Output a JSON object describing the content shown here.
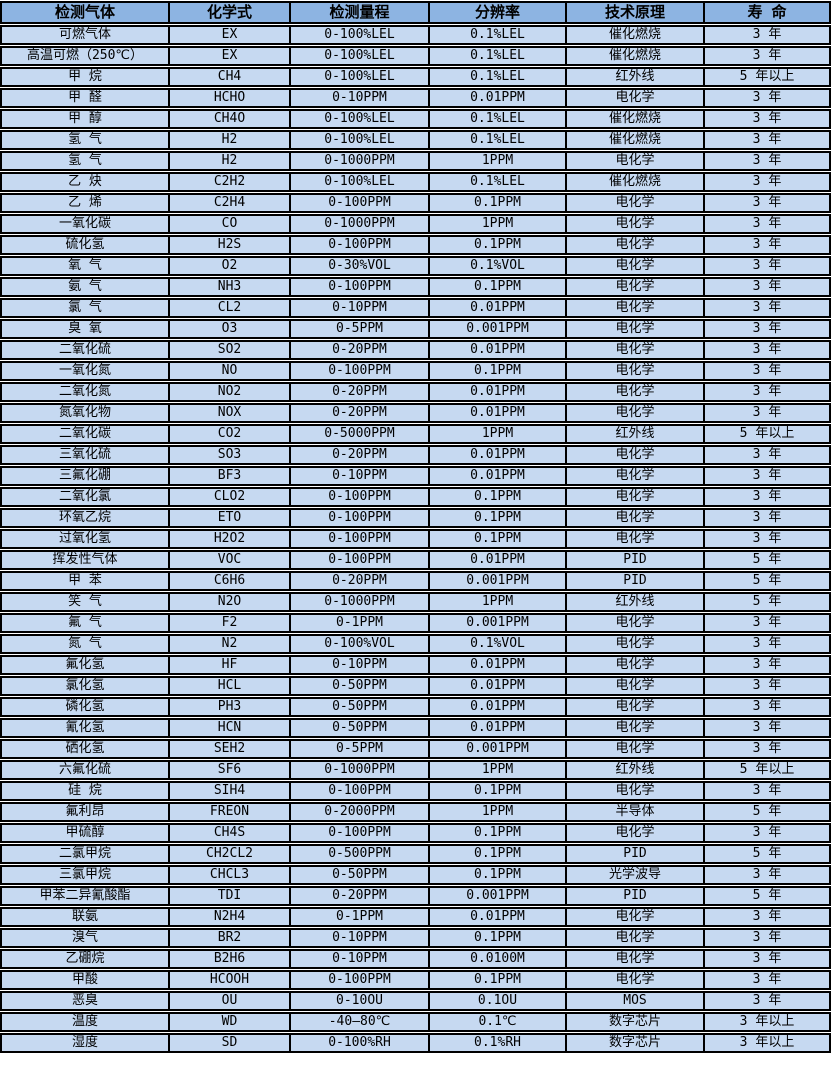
{
  "colors": {
    "header_bg": "#8DB4E2",
    "row_bg": "#C6D9F1",
    "border": "#000000",
    "row_gap": "#FFFFFF",
    "text": "#000000"
  },
  "table": {
    "columns": [
      "检测气体",
      "化学式",
      "检测量程",
      "分辨率",
      "技术原理",
      "寿 命"
    ],
    "rows": [
      [
        "可燃气体",
        "EX",
        "0-100%LEL",
        "0.1%LEL",
        "催化燃烧",
        "3 年"
      ],
      [
        "高温可燃（250℃）",
        "EX",
        "0-100%LEL",
        "0.1%LEL",
        "催化燃烧",
        "3 年"
      ],
      [
        "甲 烷",
        "CH4",
        "0-100%LEL",
        "0.1%LEL",
        "红外线",
        "5 年以上"
      ],
      [
        "甲 醛",
        "HCHO",
        "0-10PPM",
        "0.01PPM",
        "电化学",
        "3 年"
      ],
      [
        "甲 醇",
        "CH4O",
        "0-100%LEL",
        "0.1%LEL",
        "催化燃烧",
        "3 年"
      ],
      [
        "氢 气",
        "H2",
        "0-100%LEL",
        "0.1%LEL",
        "催化燃烧",
        "3 年"
      ],
      [
        "氢 气",
        "H2",
        "0-1000PPM",
        "1PPM",
        "电化学",
        "3 年"
      ],
      [
        "乙 炔",
        "C2H2",
        "0-100%LEL",
        "0.1%LEL",
        "催化燃烧",
        "3 年"
      ],
      [
        "乙 烯",
        "C2H4",
        "0-100PPM",
        "0.1PPM",
        "电化学",
        "3 年"
      ],
      [
        "一氧化碳",
        "CO",
        "0-1000PPM",
        "1PPM",
        "电化学",
        "3 年"
      ],
      [
        "硫化氢",
        "H2S",
        "0-100PPM",
        "0.1PPM",
        "电化学",
        "3 年"
      ],
      [
        "氧 气",
        "O2",
        "0-30%VOL",
        "0.1%VOL",
        "电化学",
        "3 年"
      ],
      [
        "氨 气",
        "NH3",
        "0-100PPM",
        "0.1PPM",
        "电化学",
        "3 年"
      ],
      [
        "氯 气",
        "CL2",
        "0-10PPM",
        "0.01PPM",
        "电化学",
        "3 年"
      ],
      [
        "臭 氧",
        "O3",
        "0-5PPM",
        "0.001PPM",
        "电化学",
        "3 年"
      ],
      [
        "二氧化硫",
        "SO2",
        "0-20PPM",
        "0.01PPM",
        "电化学",
        "3 年"
      ],
      [
        "一氧化氮",
        "NO",
        "0-100PPM",
        "0.1PPM",
        "电化学",
        "3 年"
      ],
      [
        "二氧化氮",
        "NO2",
        "0-20PPM",
        "0.01PPM",
        "电化学",
        "3 年"
      ],
      [
        "氮氧化物",
        "NOX",
        "0-20PPM",
        "0.01PPM",
        "电化学",
        "3 年"
      ],
      [
        "二氧化碳",
        "CO2",
        "0-5000PPM",
        "1PPM",
        "红外线",
        "5 年以上"
      ],
      [
        "三氧化硫",
        "SO3",
        "0-20PPM",
        "0.01PPM",
        "电化学",
        "3 年"
      ],
      [
        "三氟化硼",
        "BF3",
        "0-10PPM",
        "0.01PPM",
        "电化学",
        "3 年"
      ],
      [
        "二氧化氯",
        "CLO2",
        "0-100PPM",
        "0.1PPM",
        "电化学",
        "3 年"
      ],
      [
        "环氧乙烷",
        "ETO",
        "0-100PPM",
        "0.1PPM",
        "电化学",
        "3 年"
      ],
      [
        "过氧化氢",
        "H2O2",
        "0-100PPM",
        "0.1PPM",
        "电化学",
        "3 年"
      ],
      [
        "挥发性气体",
        "VOC",
        "0-100PPM",
        "0.01PPM",
        "PID",
        "5 年"
      ],
      [
        "甲 苯",
        "C6H6",
        "0-20PPM",
        "0.001PPM",
        "PID",
        "5 年"
      ],
      [
        "笑 气",
        "N2O",
        "0-1000PPM",
        "1PPM",
        "红外线",
        "5 年"
      ],
      [
        "氟 气",
        "F2",
        "0-1PPM",
        "0.001PPM",
        "电化学",
        "3 年"
      ],
      [
        "氮 气",
        "N2",
        "0-100%VOL",
        "0.1%VOL",
        "电化学",
        "3 年"
      ],
      [
        "氟化氢",
        "HF",
        "0-10PPM",
        "0.01PPM",
        "电化学",
        "3 年"
      ],
      [
        "氯化氢",
        "HCL",
        "0-50PPM",
        "0.01PPM",
        "电化学",
        "3 年"
      ],
      [
        "磷化氢",
        "PH3",
        "0-50PPM",
        "0.01PPM",
        "电化学",
        "3 年"
      ],
      [
        "氰化氢",
        "HCN",
        "0-50PPM",
        "0.01PPM",
        "电化学",
        "3 年"
      ],
      [
        "硒化氢",
        "SEH2",
        "0-5PPM",
        "0.001PPM",
        "电化学",
        "3 年"
      ],
      [
        "六氟化硫",
        "SF6",
        "0-1000PPM",
        "1PPM",
        "红外线",
        "5 年以上"
      ],
      [
        "硅 烷",
        "SIH4",
        "0-100PPM",
        "0.1PPM",
        "电化学",
        "3 年"
      ],
      [
        "氟利昂",
        "FREON",
        "0-2000PPM",
        "1PPM",
        "半导体",
        "5 年"
      ],
      [
        "甲硫醇",
        "CH4S",
        "0-100PPM",
        "0.1PPM",
        "电化学",
        "3 年"
      ],
      [
        "二氯甲烷",
        "CH2CL2",
        "0-500PPM",
        "0.1PPM",
        "PID",
        "5 年"
      ],
      [
        "三氯甲烷",
        "CHCL3",
        "0-50PPM",
        "0.1PPM",
        "光学波导",
        "3 年"
      ],
      [
        "甲苯二异氰酸酯",
        "TDI",
        "0-20PPM",
        "0.001PPM",
        "PID",
        "5 年"
      ],
      [
        "联氨",
        "N2H4",
        "0-1PPM",
        "0.01PPM",
        "电化学",
        "3 年"
      ],
      [
        "溴气",
        "BR2",
        "0-10PPM",
        "0.1PPM",
        "电化学",
        "3 年"
      ],
      [
        "乙硼烷",
        "B2H6",
        "0-10PPM",
        "0.0100M",
        "电化学",
        "3 年"
      ],
      [
        "甲酸",
        "HCOOH",
        "0-100PPM",
        "0.1PPM",
        "电化学",
        "3 年"
      ],
      [
        "恶臭",
        "OU",
        "0-10OU",
        "0.1OU",
        "MOS",
        "3 年"
      ],
      [
        "温度",
        "WD",
        "-40—80℃",
        "0.1℃",
        "数字芯片",
        "3 年以上"
      ],
      [
        "湿度",
        "SD",
        "0-100%RH",
        "0.1%RH",
        "数字芯片",
        "3 年以上"
      ]
    ]
  }
}
